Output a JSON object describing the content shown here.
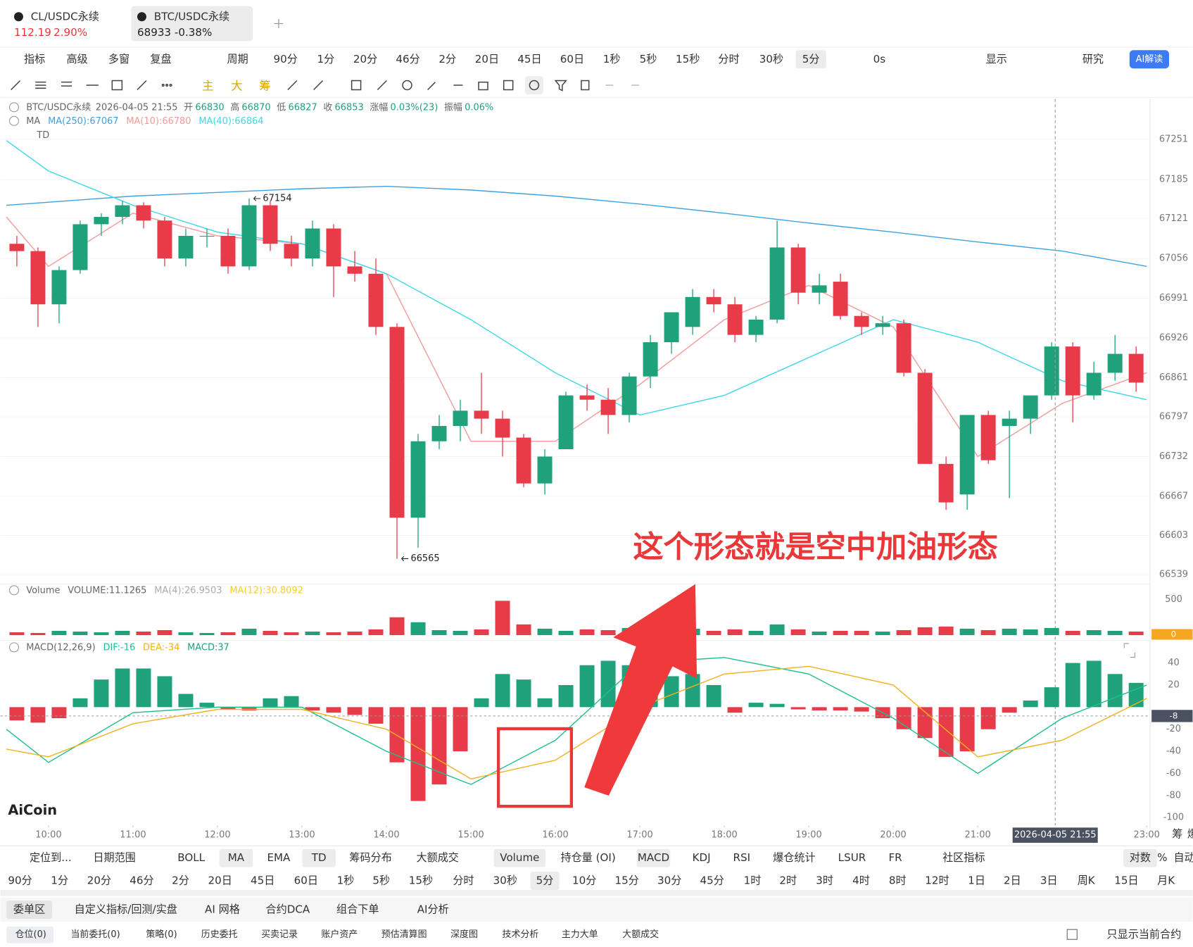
{
  "tabs": [
    {
      "name": "CL/USDC永续",
      "price": "112.19",
      "change": "2.90%"
    },
    {
      "name": "BTC/USDC永续",
      "price": "68933",
      "change": "-0.38%"
    }
  ],
  "toolbar": {
    "left": [
      "指标",
      "高级",
      "多窗",
      "复盘",
      "周期"
    ],
    "periods": [
      "90分",
      "1分",
      "20分",
      "46分",
      "2分",
      "20日",
      "45日",
      "60日",
      "1秒",
      "5秒",
      "15秒",
      "分时",
      "30秒",
      "5分"
    ],
    "active": 13,
    "right": [
      "0s",
      "显示",
      "研究",
      "AI解读"
    ]
  },
  "draw_tools": [
    "主",
    "大",
    "筹"
  ],
  "info": {
    "symbol": "BTC/USDC永续",
    "time": "2026-04-05 21:55",
    "fields": [
      [
        "开",
        "66830"
      ],
      [
        "高",
        "66870"
      ],
      [
        "低",
        "66827"
      ],
      [
        "收",
        "66853"
      ],
      [
        "涨幅",
        "0.03%(23)"
      ],
      [
        "振幅",
        "0.06%"
      ]
    ]
  },
  "ma_legend": {
    "name": "MA",
    "items": [
      "MA(250):67067",
      "MA(10):66780",
      "MA(40):66864"
    ]
  },
  "td_label": "TD",
  "volume_legend": {
    "name": "Volume",
    "items": [
      "VOLUME:11.1265",
      "MA(4):26.9503",
      "MA(12):30.8092"
    ]
  },
  "macd_legend": {
    "name": "MACD(12,26,9)",
    "items": [
      "DIF:-16",
      "DEA:-34",
      "MACD:37"
    ]
  },
  "annotation": "这个形态就是空中加油形态",
  "watermark": "AiCoin",
  "axis_extras": [
    "筹",
    "爆"
  ],
  "chart_data": [
    {
      "type": "candlestick",
      "up_color": "#1fa27b",
      "down_color": "#e83b49",
      "grid": true,
      "x": [
        9.625,
        9.875,
        10.125,
        10.375,
        10.625,
        10.875,
        11.125,
        11.375,
        11.625,
        11.875,
        12.125,
        12.375,
        12.625,
        12.875,
        13.125,
        13.375,
        13.625,
        13.875,
        14.125,
        14.375,
        14.625,
        14.875,
        15.125,
        15.375,
        15.625,
        15.875,
        16.125,
        16.375,
        16.625,
        16.875,
        17.125,
        17.375,
        17.625,
        17.875,
        18.125,
        18.375,
        18.625,
        18.875,
        19.125,
        19.375,
        19.625,
        19.875,
        20.125,
        20.375,
        20.625,
        20.875,
        21.125,
        21.375,
        21.625,
        21.875,
        22.125,
        22.375,
        22.625,
        22.875
      ],
      "open": [
        67080,
        67068,
        66981,
        67037,
        67112,
        67124,
        67143,
        67118,
        67056,
        67093,
        67093,
        67043,
        67143,
        67080,
        67056,
        67105,
        67043,
        67031,
        66944,
        66632,
        66757,
        66782,
        66807,
        66794,
        66763,
        66688,
        66744,
        66832,
        66825,
        66800,
        66863,
        66919,
        66944,
        66993,
        66981,
        66931,
        66956,
        67074,
        67000,
        67018,
        66962,
        66944,
        66950,
        66869,
        66720,
        66670,
        66800,
        66782,
        66794,
        66832,
        66912,
        66832,
        66869,
        66900
      ],
      "high": [
        67093,
        67074,
        67043,
        67118,
        67130,
        67150,
        67148,
        67124,
        67105,
        67105,
        67105,
        67154,
        67150,
        67093,
        67118,
        67112,
        67068,
        67056,
        66950,
        66769,
        66800,
        66825,
        66869,
        66807,
        66769,
        66744,
        66838,
        66850,
        66844,
        66869,
        66931,
        66968,
        67006,
        67006,
        66993,
        66962,
        67118,
        67080,
        67031,
        67031,
        66968,
        66962,
        66956,
        66875,
        66732,
        66800,
        66807,
        66807,
        66825,
        66919,
        66919,
        66887,
        66931,
        66912
      ],
      "low": [
        67043,
        66944,
        66950,
        67031,
        67093,
        67112,
        67105,
        67043,
        67043,
        67074,
        67031,
        67037,
        67068,
        67043,
        67043,
        66993,
        67018,
        66931,
        66565,
        66583,
        66744,
        66757,
        66769,
        66732,
        66682,
        66670,
        66744,
        66807,
        66769,
        66788,
        66844,
        66900,
        66931,
        66968,
        66919,
        66919,
        66950,
        66981,
        66981,
        66956,
        66931,
        66931,
        66863,
        66720,
        66645,
        66645,
        66720,
        66664,
        66769,
        66825,
        66788,
        66825,
        66856,
        66838
      ],
      "close": [
        67068,
        66981,
        67037,
        67112,
        67124,
        67143,
        67118,
        67056,
        67093,
        67093,
        67043,
        67143,
        67080,
        67056,
        67105,
        67043,
        67031,
        66944,
        66632,
        66757,
        66782,
        66807,
        66794,
        66763,
        66688,
        66732,
        66832,
        66825,
        66800,
        66863,
        66919,
        66968,
        66993,
        66981,
        66931,
        66956,
        67074,
        67000,
        67012,
        66962,
        66944,
        66950,
        66869,
        66720,
        66657,
        66800,
        66726,
        66794,
        66832,
        66912,
        66832,
        66869,
        66900,
        66853
      ],
      "lines": [
        {
          "color": "#3ea2e0",
          "x": [
            9.5,
            10,
            11,
            12,
            13,
            14,
            15,
            16,
            17,
            18,
            19,
            20,
            21,
            22,
            23
          ],
          "values": [
            67143,
            67148,
            67158,
            67164,
            67170,
            67174,
            67168,
            67158,
            67145,
            67130,
            67114,
            67099,
            67083,
            67068,
            67043
          ]
        },
        {
          "color": "#f29b9b",
          "x": [
            9.5,
            10,
            11,
            12,
            13,
            14,
            15,
            16,
            17,
            18,
            19,
            20,
            21,
            22,
            23
          ],
          "values": [
            67124,
            67043,
            67130,
            67093,
            67080,
            67031,
            66757,
            66757,
            66850,
            66956,
            67012,
            66944,
            66732,
            66819,
            66869
          ]
        },
        {
          "color": "#3fd8e8",
          "x": [
            9.5,
            10,
            11,
            12,
            13,
            14,
            15,
            16,
            17,
            18,
            19,
            20,
            21,
            22,
            23
          ],
          "values": [
            67249,
            67199,
            67143,
            67099,
            67080,
            67031,
            66956,
            66869,
            66800,
            66832,
            66894,
            66956,
            66919,
            66856,
            66825
          ]
        }
      ],
      "annotations": [
        {
          "x": 12.375,
          "value": 67154
        },
        {
          "x": 14.125,
          "value": 66565
        }
      ],
      "xlim": [
        9.43,
        23.04
      ],
      "xticks": [
        {
          "value": 10,
          "label": "10:00"
        },
        {
          "value": 11,
          "label": "11:00"
        },
        {
          "value": 12,
          "label": "12:00"
        },
        {
          "value": 13,
          "label": "13:00"
        },
        {
          "value": 14,
          "label": "14:00"
        },
        {
          "value": 15,
          "label": "15:00"
        },
        {
          "value": 16,
          "label": "16:00"
        },
        {
          "value": 17,
          "label": "17:00"
        },
        {
          "value": 18,
          "label": "18:00"
        },
        {
          "value": 19,
          "label": "19:00"
        },
        {
          "value": 20,
          "label": "20:00"
        },
        {
          "value": 21,
          "label": "21:00"
        },
        {
          "value": 23,
          "label": "23:00"
        }
      ],
      "cursor": {
        "x": 21.917,
        "label": "2026-04-05 21:55"
      },
      "ylim": [
        66527,
        67317
      ],
      "yticks": [
        66539,
        66603,
        66667,
        66732,
        66797,
        66861,
        66926,
        66991,
        67056,
        67121,
        67185,
        67251
      ]
    },
    {
      "type": "bar",
      "x": [
        9.625,
        9.875,
        10.125,
        10.375,
        10.625,
        10.875,
        11.125,
        11.375,
        11.625,
        11.875,
        12.125,
        12.375,
        12.625,
        12.875,
        13.125,
        13.375,
        13.625,
        13.875,
        14.125,
        14.375,
        14.625,
        14.875,
        15.125,
        15.375,
        15.625,
        15.875,
        16.125,
        16.375,
        16.625,
        16.875,
        17.125,
        17.375,
        17.625,
        17.875,
        18.125,
        18.375,
        18.625,
        18.875,
        19.125,
        19.375,
        19.625,
        19.875,
        20.125,
        20.375,
        20.625,
        20.875,
        21.125,
        21.375,
        21.625,
        21.875,
        22.125,
        22.375,
        22.625,
        22.875
      ],
      "values": [
        40,
        30,
        60,
        50,
        40,
        60,
        50,
        70,
        40,
        30,
        40,
        90,
        60,
        40,
        50,
        40,
        50,
        80,
        250,
        180,
        70,
        60,
        80,
        480,
        150,
        90,
        60,
        80,
        70,
        100,
        80,
        120,
        90,
        60,
        80,
        60,
        150,
        80,
        50,
        60,
        60,
        50,
        70,
        110,
        120,
        90,
        70,
        90,
        80,
        100,
        60,
        70,
        60,
        50
      ],
      "ylim": [
        0,
        585
      ],
      "yticks": [
        500
      ],
      "current": 0
    },
    {
      "type": "macd",
      "up_color": "#1fa27b",
      "down_color": "#e83b49",
      "x": [
        9.625,
        9.875,
        10.125,
        10.375,
        10.625,
        10.875,
        11.125,
        11.375,
        11.625,
        11.875,
        12.125,
        12.375,
        12.625,
        12.875,
        13.125,
        13.375,
        13.625,
        13.875,
        14.125,
        14.375,
        14.625,
        14.875,
        15.125,
        15.375,
        15.625,
        15.875,
        16.125,
        16.375,
        16.625,
        16.875,
        17.125,
        17.375,
        17.625,
        17.875,
        18.125,
        18.375,
        18.625,
        18.875,
        19.125,
        19.375,
        19.625,
        19.875,
        20.125,
        20.375,
        20.625,
        20.875,
        21.125,
        21.375,
        21.625,
        21.875,
        22.125,
        22.375,
        22.625,
        22.875
      ],
      "values": [
        -12,
        -14,
        -10,
        8,
        25,
        35,
        35,
        28,
        12,
        4,
        -2,
        -3,
        8,
        10,
        -3,
        -5,
        -7,
        -15,
        -50,
        -85,
        -70,
        -40,
        8,
        30,
        25,
        8,
        20,
        38,
        42,
        38,
        32,
        28,
        30,
        20,
        -5,
        4,
        3,
        -2,
        -3,
        -3,
        -4,
        -10,
        -20,
        -28,
        -45,
        -40,
        -20,
        -5,
        6,
        18,
        40,
        42,
        30,
        22
      ],
      "lines": [
        {
          "color": "#1fbf8f",
          "x": [
            9.5,
            10,
            11,
            12,
            13,
            14,
            15,
            16,
            17,
            18,
            19,
            20,
            21,
            22,
            23
          ],
          "values": [
            -20,
            -50,
            -5,
            0,
            0,
            -40,
            -70,
            -30,
            40,
            45,
            30,
            -10,
            -60,
            -10,
            20
          ]
        },
        {
          "color": "#f2b01e",
          "x": [
            9.5,
            10,
            11,
            12,
            13,
            14,
            15,
            16,
            17,
            18,
            19,
            20,
            21,
            22,
            23
          ],
          "values": [
            -38,
            -45,
            -15,
            -2,
            -2,
            -20,
            -65,
            -48,
            0,
            30,
            37,
            20,
            -45,
            -30,
            8
          ]
        }
      ],
      "ylim": [
        -107,
        48
      ],
      "yticks": [
        -100,
        -80,
        -60,
        -40,
        -20,
        20,
        40
      ],
      "current": -8
    }
  ],
  "bottom": {
    "indicators": [
      "定位到...",
      "日期范围",
      "BOLL",
      "MA",
      "EMA",
      "TD",
      "筹码分布",
      "大额成交",
      "Volume",
      "持仓量 (OI)",
      "MACD",
      "KDJ",
      "RSI",
      "爆仓统计",
      "LSUR",
      "FR",
      "社区指标",
      "对数",
      "%",
      "自动"
    ],
    "active_indicators": [
      3,
      5,
      8,
      10,
      17
    ],
    "periods": [
      "90分",
      "1分",
      "20分",
      "46分",
      "2分",
      "20日",
      "45日",
      "60日",
      "1秒",
      "5秒",
      "15秒",
      "分时",
      "30秒",
      "5分",
      "10分",
      "15分",
      "30分",
      "45分",
      "1时",
      "2时",
      "3时",
      "4时",
      "8时",
      "12时",
      "1日",
      "2日",
      "3日",
      "周K",
      "15日",
      "月K"
    ],
    "active_period": 13,
    "tabs": [
      "委单区",
      "自定义指标/回测/实盘",
      "AI 网格",
      "合约DCA",
      "组合下单",
      "AI分析"
    ],
    "subtabs": [
      "仓位(0)",
      "当前委托(0)",
      "策略(0)",
      "历史委托",
      "买卖记录",
      "账户资产",
      "预估清算图",
      "深度图",
      "技术分析",
      "主力大单",
      "大额成交"
    ],
    "only_current": "只显示当前合约"
  }
}
